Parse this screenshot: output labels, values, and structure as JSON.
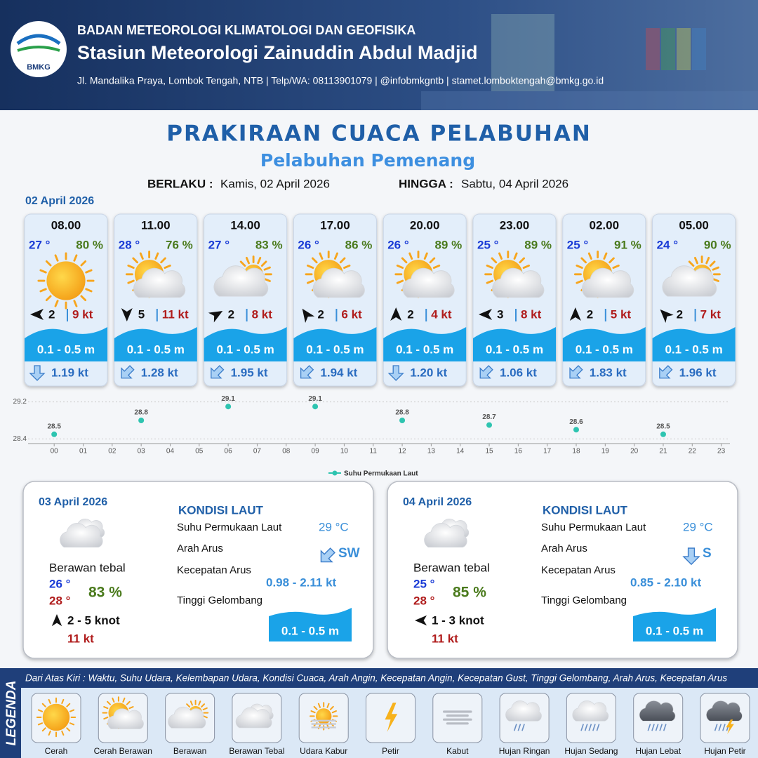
{
  "header": {
    "agency": "BADAN METEOROLOGI KLIMATOLOGI DAN GEOFISIKA",
    "station": "Stasiun Meteorologi Zainuddin Abdul Madjid",
    "address": "Jl. Mandalika Praya, Lombok Tengah, NTB | Telp/WA: 08113901079 | @infobmkgntb | stamet.lomboktengah@bmkg.go.id",
    "logo": "BMKG"
  },
  "title": "PRAKIRAAN CUACA PELABUHAN",
  "subtitle": "Pelabuhan Pemenang",
  "validity": {
    "from_label": "BERLAKU :",
    "from": "Kamis, 02 April 2026",
    "to_label": "HINGGA :",
    "to": "Sabtu, 04 April 2026"
  },
  "day1": {
    "date": "02 April 2026",
    "forecasts": [
      {
        "time": "08.00",
        "temperature": "27 °",
        "humidity": "80 %",
        "wind_speed": "2",
        "gust": "9 kt",
        "wave": "0.1 - 0.5 m",
        "current": "1.19 kt"
      },
      {
        "time": "11.00",
        "temperature": "28 °",
        "humidity": "76 %",
        "wind_speed": "5",
        "gust": "11 kt",
        "wave": "0.1 - 0.5 m",
        "current": "1.28 kt"
      },
      {
        "time": "14.00",
        "temperature": "27 °",
        "humidity": "83 %",
        "wind_speed": "2",
        "gust": "8 kt",
        "wave": "0.1 - 0.5 m",
        "current": "1.95 kt"
      },
      {
        "time": "17.00",
        "temperature": "26 °",
        "humidity": "86 %",
        "wind_speed": "2",
        "gust": "6 kt",
        "wave": "0.1 - 0.5 m",
        "current": "1.94 kt"
      },
      {
        "time": "20.00",
        "temperature": "26 °",
        "humidity": "89 %",
        "wind_speed": "2",
        "gust": "4 kt",
        "wave": "0.1 - 0.5 m",
        "current": "1.20 kt"
      },
      {
        "time": "23.00",
        "temperature": "25 °",
        "humidity": "89 %",
        "wind_speed": "3",
        "gust": "8 kt",
        "wave": "0.1 - 0.5 m",
        "current": "1.06 kt"
      },
      {
        "time": "02.00",
        "temperature": "25 °",
        "humidity": "91 %",
        "wind_speed": "2",
        "gust": "5 kt",
        "wave": "0.1 - 0.5 m",
        "current": "1.83 kt"
      },
      {
        "time": "05.00",
        "temperature": "24 °",
        "humidity": "90 %",
        "wind_speed": "2",
        "gust": "7 kt",
        "wave": "0.1 - 0.5 m",
        "current": "1.96 kt"
      }
    ]
  },
  "chart_data": {
    "type": "scatter",
    "x": [
      0,
      3,
      6,
      9,
      12,
      15,
      18,
      21
    ],
    "series": [
      {
        "name": "Suhu Permukaan Laut",
        "color": "#2ec4b0",
        "values": [
          28.5,
          28.8,
          29.1,
          29.1,
          28.8,
          28.7,
          28.6,
          28.5
        ]
      }
    ],
    "xlim": [
      -0.9,
      23.3
    ],
    "xticks": [
      {
        "value": 0,
        "label": "00"
      },
      {
        "value": 1,
        "label": "01"
      },
      {
        "value": 2,
        "label": "02"
      },
      {
        "value": 3,
        "label": "03"
      },
      {
        "value": 4,
        "label": "04"
      },
      {
        "value": 5,
        "label": "05"
      },
      {
        "value": 6,
        "label": "06"
      },
      {
        "value": 7,
        "label": "07"
      },
      {
        "value": 8,
        "label": "08"
      },
      {
        "value": 9,
        "label": "09"
      },
      10,
      11,
      12,
      13,
      14,
      15,
      16,
      17,
      18,
      19,
      20,
      21,
      22,
      23
    ],
    "ylim": [
      28.3,
      29.3
    ],
    "yticks": [
      28.4,
      29.2
    ],
    "grid": true
  },
  "days": [
    {
      "date": "03 April 2026",
      "heading": "KONDISI LAUT",
      "condition": "Berawan tebal",
      "temp_min": "26 °",
      "temp_max": "28 °",
      "humidity": "83 %",
      "wind": "2  - 5 knot",
      "gust": "11 kt",
      "sst_label": "Suhu Permukaan Laut",
      "sst": "29 °C",
      "current_dir_label": "Arah Arus",
      "current_dir": "SW",
      "current_speed_label": "Kecepatan Arus",
      "current_speed": "0.98 - 2.11 kt",
      "wave_label": "Tinggi Gelombang",
      "wave": "0.1 - 0.5 m"
    },
    {
      "date": "04 April 2026",
      "heading": "KONDISI LAUT",
      "condition": "Berawan tebal",
      "temp_min": "25 °",
      "temp_max": "28 °",
      "humidity": "85 %",
      "wind": "1 - 3 knot",
      "gust": "11 kt",
      "sst_label": "Suhu Permukaan Laut",
      "sst": "29 °C",
      "current_dir_label": "Arah Arus",
      "current_dir": "S",
      "current_speed_label": "Kecepatan Arus",
      "current_speed": "0.85 - 2.10 kt",
      "wave_label": "Tinggi Gelombang",
      "wave": "0.1 - 0.5 m"
    }
  ],
  "legend": {
    "title": "LEGENDA",
    "note": "Dari Atas Kiri : Waktu, Suhu Udara, Kelembapan Udara, Kondisi Cuaca, Arah Angin, Kecepatan Angin, Kecepatan Gust, Tinggi Gelombang, Arah Arus, Kecepatan Arus",
    "items": [
      "Cerah",
      "Cerah Berawan",
      "Berawan",
      "Berawan Tebal",
      "Udara Kabur",
      "Petir",
      "Kabut",
      "Hujan Ringan",
      "Hujan Sedang",
      "Hujan Lebat",
      "Hujan Petir"
    ]
  }
}
